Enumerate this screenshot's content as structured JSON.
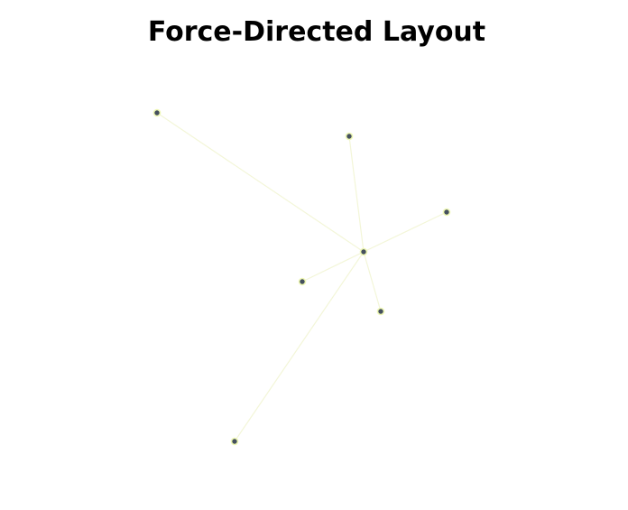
{
  "title": "Force-Directed Layout",
  "colors": {
    "edge": "#f3f6d8",
    "node_fill": "#45505e",
    "node_stroke": "#eef7b5",
    "title": "#000000"
  },
  "graph": {
    "nodes": [
      {
        "id": "hub"
      },
      {
        "id": "n1"
      },
      {
        "id": "n2"
      },
      {
        "id": "n3"
      },
      {
        "id": "n4"
      },
      {
        "id": "n5"
      },
      {
        "id": "n6"
      }
    ],
    "edges": [
      {
        "source": "hub",
        "target": "n1"
      },
      {
        "source": "hub",
        "target": "n2"
      },
      {
        "source": "hub",
        "target": "n3"
      },
      {
        "source": "hub",
        "target": "n4"
      },
      {
        "source": "hub",
        "target": "n5"
      },
      {
        "source": "hub",
        "target": "n6"
      }
    ]
  }
}
